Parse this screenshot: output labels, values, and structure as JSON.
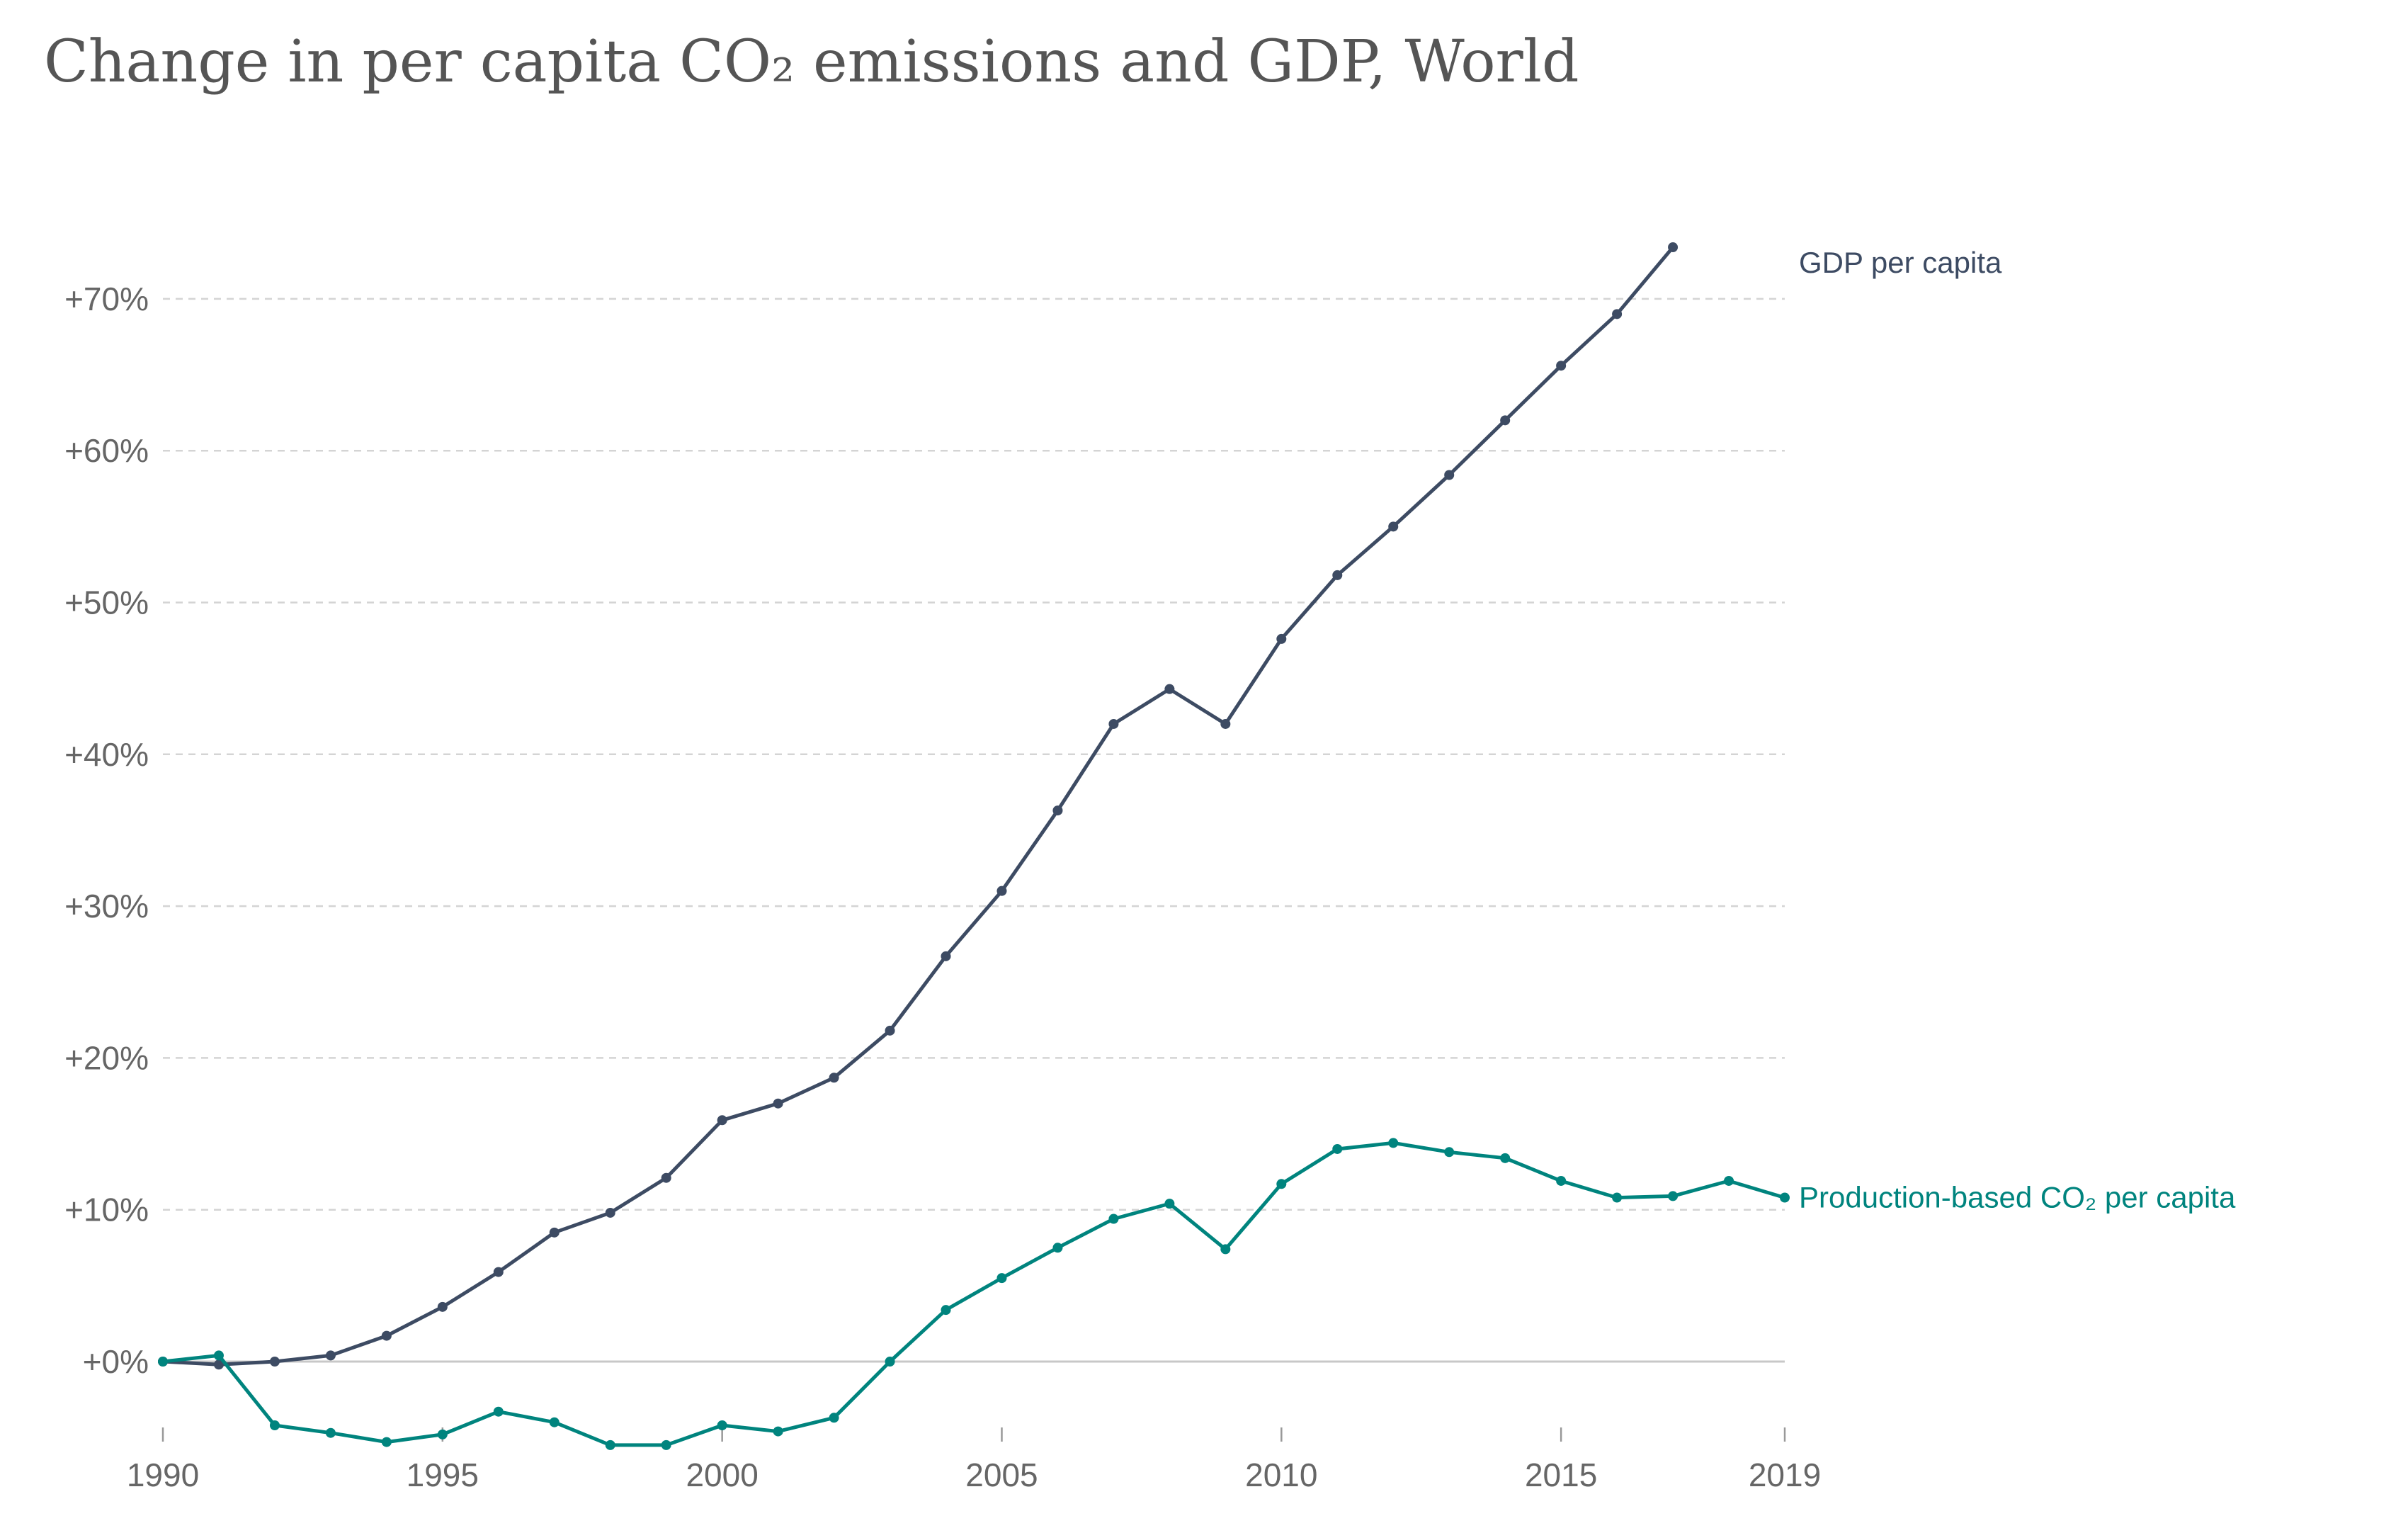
{
  "chart_data": {
    "type": "line",
    "title": "Change in per capita CO₂ emissions and GDP, World",
    "xlabel": "",
    "ylabel": "",
    "xlim": [
      1990,
      2019
    ],
    "ylim": [
      -6,
      75
    ],
    "x_ticks": [
      1990,
      1995,
      2000,
      2005,
      2010,
      2015,
      2019
    ],
    "y_ticks": [
      0,
      10,
      20,
      30,
      40,
      50,
      60,
      70
    ],
    "y_tick_labels": [
      "+0%",
      "+10%",
      "+20%",
      "+30%",
      "+40%",
      "+50%",
      "+60%",
      "+70%"
    ],
    "grid": "horizontal dashed",
    "legend": "inline labels at right end of lines",
    "series": [
      {
        "name": "GDP per capita",
        "color": "#3d4b63",
        "x": [
          1990,
          1991,
          1992,
          1993,
          1994,
          1995,
          1996,
          1997,
          1998,
          1999,
          2000,
          2001,
          2002,
          2003,
          2004,
          2005,
          2006,
          2007,
          2008,
          2009,
          2010,
          2011,
          2012,
          2013,
          2014,
          2015,
          2016,
          2017
        ],
        "values": [
          0,
          -0.2,
          0,
          0.4,
          1.7,
          3.6,
          5.9,
          8.5,
          9.8,
          12.1,
          15.9,
          17,
          18.7,
          21.8,
          26.7,
          31,
          36.3,
          42,
          44.3,
          42,
          47.6,
          51.8,
          55,
          58.4,
          62,
          65.6,
          69,
          73.4
        ]
      },
      {
        "name": "Production-based CO₂ per capita",
        "color": "#00847e",
        "x": [
          1990,
          1991,
          1992,
          1993,
          1994,
          1995,
          1996,
          1997,
          1998,
          1999,
          2000,
          2001,
          2002,
          2003,
          2004,
          2005,
          2006,
          2007,
          2008,
          2009,
          2010,
          2011,
          2012,
          2013,
          2014,
          2015,
          2016,
          2017,
          2018,
          2019
        ],
        "values": [
          0,
          0.4,
          -4.2,
          -4.7,
          -5.3,
          -4.8,
          -3.3,
          -4,
          -5.5,
          -5.5,
          -4.2,
          -4.6,
          -3.7,
          0,
          3.4,
          5.5,
          7.5,
          9.4,
          10.4,
          7.4,
          11.7,
          14,
          14.4,
          13.8,
          13.4,
          11.9,
          10.8,
          10.9,
          11.9,
          10.8
        ]
      }
    ]
  }
}
